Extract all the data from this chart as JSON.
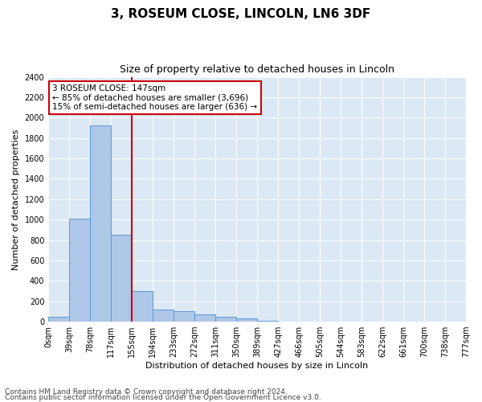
{
  "title": "3, ROSEUM CLOSE, LINCOLN, LN6 3DF",
  "subtitle": "Size of property relative to detached houses in Lincoln",
  "xlabel": "Distribution of detached houses by size in Lincoln",
  "ylabel": "Number of detached properties",
  "bar_values": [
    50,
    1010,
    1920,
    850,
    300,
    120,
    100,
    70,
    50,
    30,
    10,
    2,
    0,
    0,
    0,
    0,
    0,
    0,
    0,
    0
  ],
  "tick_labels": [
    "0sqm",
    "39sqm",
    "78sqm",
    "117sqm",
    "155sqm",
    "194sqm",
    "233sqm",
    "272sqm",
    "311sqm",
    "350sqm",
    "389sqm",
    "427sqm",
    "466sqm",
    "505sqm",
    "544sqm",
    "583sqm",
    "622sqm",
    "661sqm",
    "700sqm",
    "738sqm",
    "777sqm"
  ],
  "ylim": [
    0,
    2400
  ],
  "yticks": [
    0,
    200,
    400,
    600,
    800,
    1000,
    1200,
    1400,
    1600,
    1800,
    2000,
    2200,
    2400
  ],
  "bar_color": "#aec6e8",
  "bar_edge_color": "#5b9bd5",
  "vline_color": "#cc0000",
  "vline_x": 4.0,
  "annotation_title": "3 ROSEUM CLOSE: 147sqm",
  "annotation_line1": "← 85% of detached houses are smaller (3,696)",
  "annotation_line2": "15% of semi-detached houses are larger (636) →",
  "annotation_box_color": "#cc0000",
  "footer_line1": "Contains HM Land Registry data © Crown copyright and database right 2024.",
  "footer_line2": "Contains public sector information licensed under the Open Government Licence v3.0.",
  "plot_bg_color": "#dce9f5",
  "title_fontsize": 11,
  "subtitle_fontsize": 9,
  "axis_label_fontsize": 8,
  "tick_fontsize": 7,
  "annotation_fontsize": 7.5,
  "footer_fontsize": 6.5
}
